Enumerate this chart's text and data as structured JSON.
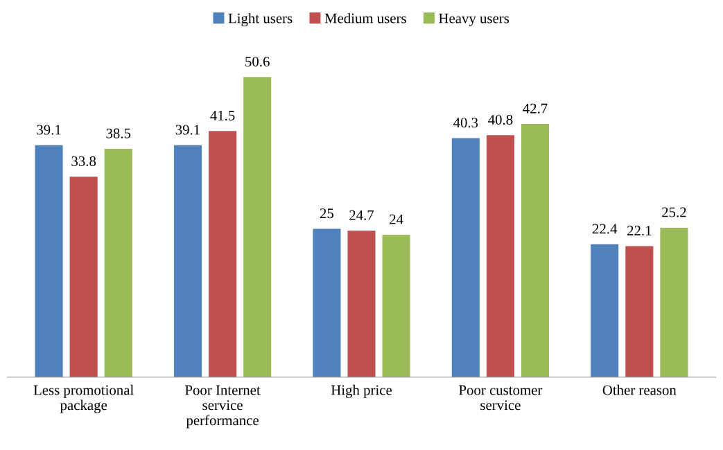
{
  "chart_data": {
    "type": "bar",
    "categories": [
      "Less promotional\npackage",
      "Poor Internet\nservice\nperformance",
      "High price",
      "Poor customer\nservice",
      "Other reason"
    ],
    "series": [
      {
        "name": "Light users",
        "color": "#4f81bd",
        "values": [
          39.1,
          39.1,
          25,
          40.3,
          22.4
        ]
      },
      {
        "name": "Medium users",
        "color": "#c0504d",
        "values": [
          33.8,
          41.5,
          24.7,
          40.8,
          22.1
        ]
      },
      {
        "name": "Heavy users",
        "color": "#9bbb59",
        "values": [
          38.5,
          50.6,
          24,
          42.7,
          25.2
        ]
      }
    ],
    "data_labels": true,
    "legend": "top",
    "grid": false,
    "tick_labels": "x"
  }
}
